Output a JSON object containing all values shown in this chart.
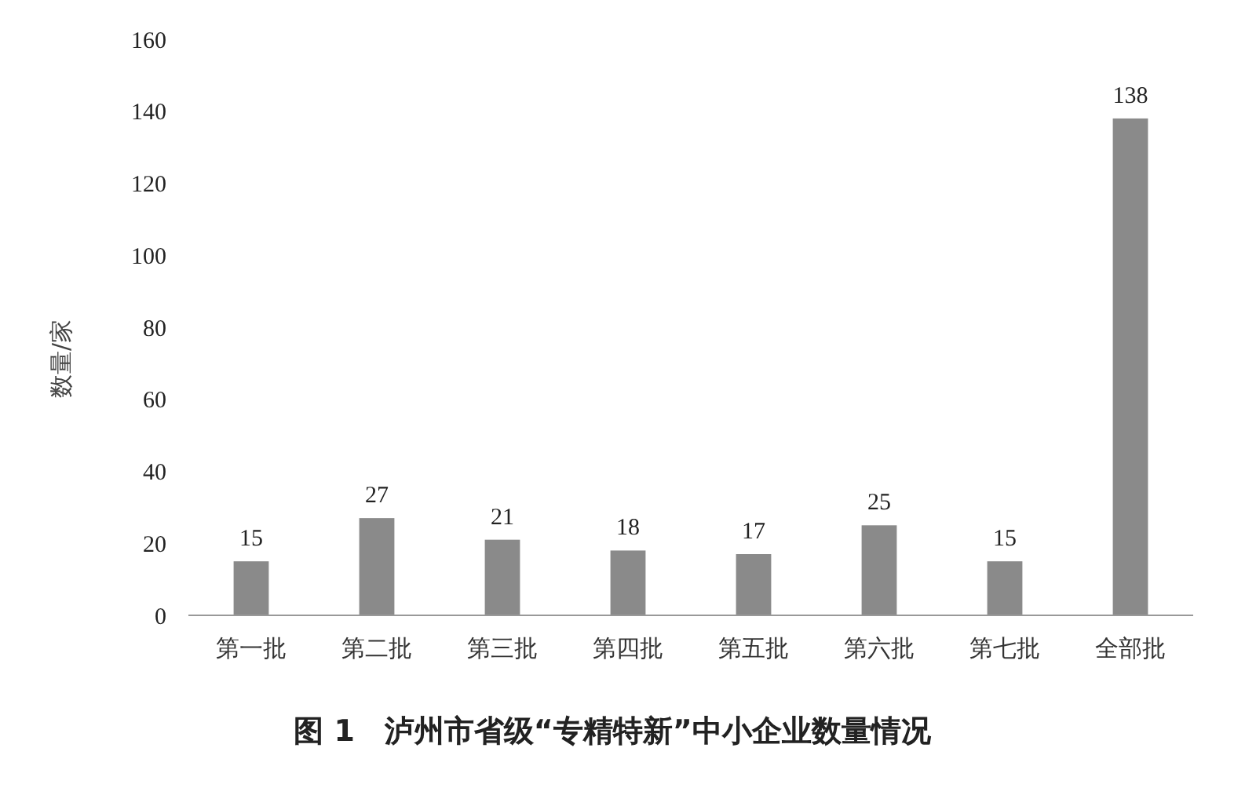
{
  "chart_data": {
    "type": "bar",
    "title": "图 1　泸州市省级“专精特新”中小企业数量情况",
    "ylabel": "数量/家",
    "categories": [
      "第一批",
      "第二批",
      "第三批",
      "第四批",
      "第五批",
      "第六批",
      "第七批",
      "全部批"
    ],
    "values": [
      15,
      27,
      21,
      18,
      17,
      25,
      15,
      138
    ],
    "color": "#8a8a8a",
    "ylim": [
      0,
      160
    ],
    "yticks": [
      0,
      20,
      40,
      60,
      80,
      100,
      120,
      140,
      160
    ],
    "grid": false,
    "data_labels": true
  }
}
